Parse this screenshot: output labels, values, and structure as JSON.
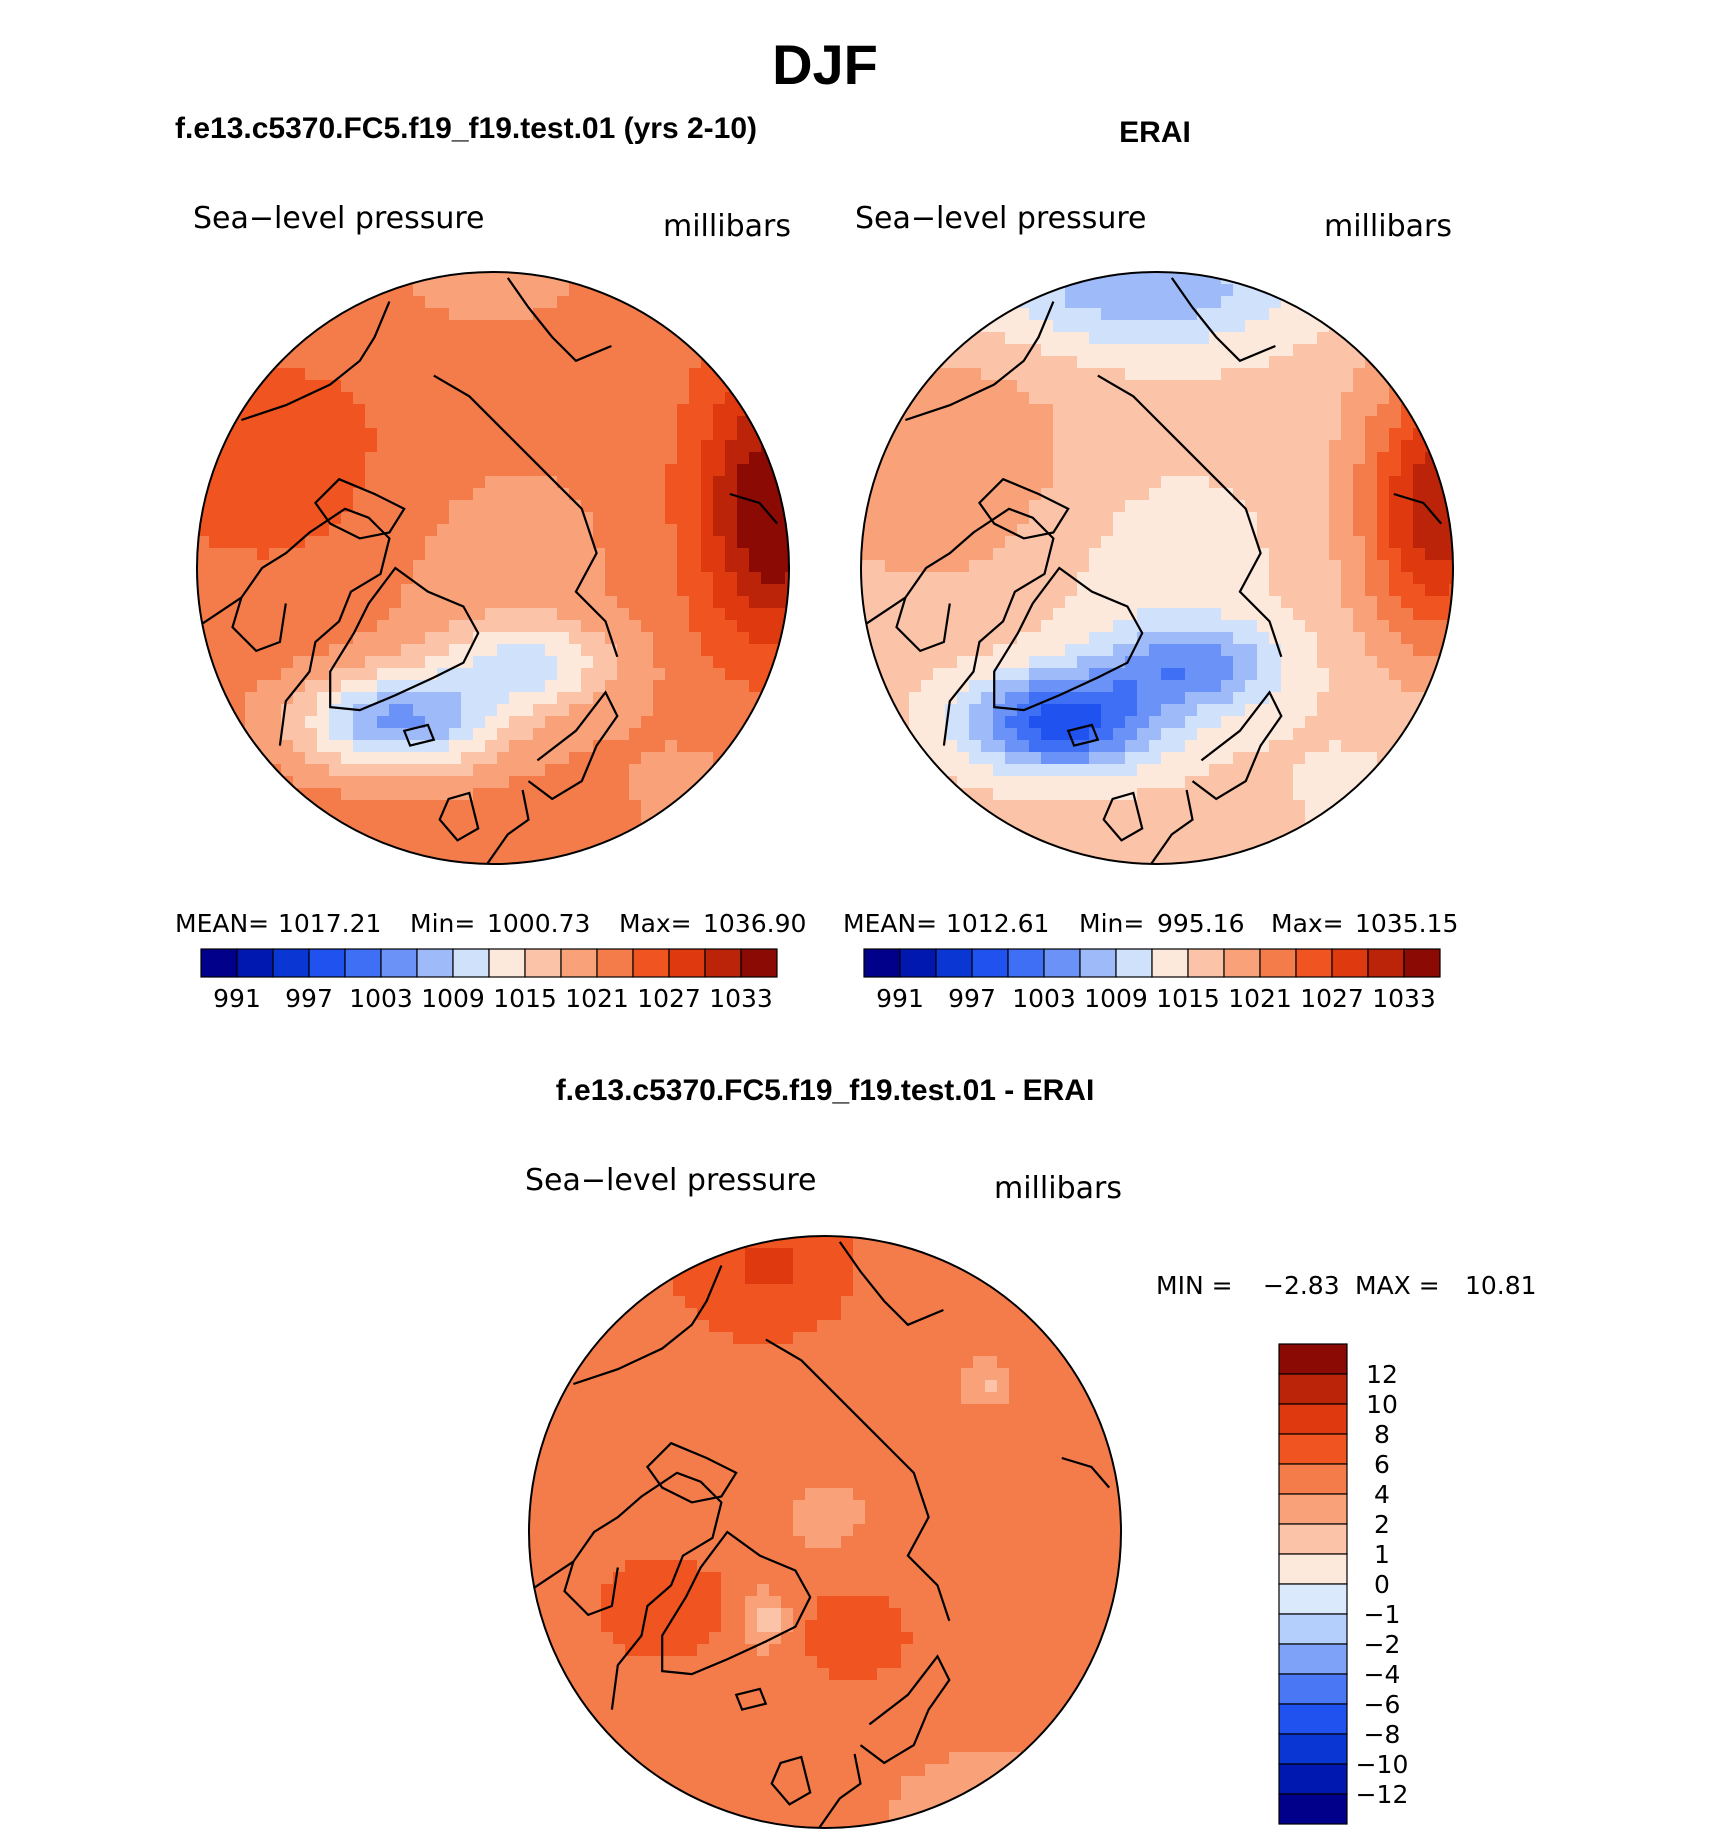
{
  "title": "DJF",
  "colors": {
    "abs_palette": [
      "#00008b",
      "#0018b0",
      "#0a37d4",
      "#1f52ee",
      "#3f6ff5",
      "#6b93f7",
      "#9fbaf9",
      "#cfe1fb",
      "#fde8dc",
      "#fbc4a8",
      "#f9a27a",
      "#f47c4b",
      "#f05521",
      "#df3a0f",
      "#bc2409",
      "#8b0a04"
    ],
    "diff_palette": [
      "#00008b",
      "#0018b0",
      "#0a37d4",
      "#1f52ee",
      "#4a78f5",
      "#7ea2f8",
      "#b4cffb",
      "#dbe9fc",
      "#fde8dc",
      "#fbc4a8",
      "#f9a27a",
      "#f47c4b",
      "#f05521",
      "#df3a0f",
      "#bc2409",
      "#8b0a04"
    ],
    "coast": "#000000"
  },
  "chart_data": [
    {
      "type": "heatmap",
      "subtitle": "f.e13.c5370.FC5.f19_f19.test.01 (yrs 2-10)",
      "variable_label": "Sea−level pressure",
      "units_label": "millibars",
      "stats": {
        "mean_label": "MEAN=",
        "mean": "1017.21",
        "min_label": "Min=",
        "min": "1000.73",
        "max_label": "Max=",
        "max": "1036.90"
      },
      "colorbar_ticks": [
        "991",
        "997",
        "1003",
        "1009",
        "1015",
        "1021",
        "1027",
        "1033"
      ],
      "levels": [
        991,
        994,
        997,
        1000,
        1003,
        1006,
        1009,
        1012,
        1015,
        1018,
        1021,
        1024,
        1027,
        1030,
        1033
      ],
      "field": {
        "base": 1022.5,
        "atlantic_low": -22,
        "pacific_low": -2,
        "siberian_high": 14,
        "canada_high": 3
      }
    },
    {
      "type": "heatmap",
      "subtitle": "ERAI",
      "variable_label": "Sea−level pressure",
      "units_label": "millibars",
      "stats": {
        "mean_label": "MEAN=",
        "mean": "1012.61",
        "min_label": "Min=",
        "min": "995.16",
        "max_label": "Max=",
        "max": "1035.15"
      },
      "colorbar_ticks": [
        "991",
        "997",
        "1003",
        "1009",
        "1015",
        "1021",
        "1027",
        "1033"
      ],
      "levels": [
        991,
        994,
        997,
        1000,
        1003,
        1006,
        1009,
        1012,
        1015,
        1018,
        1021,
        1024,
        1027,
        1030,
        1033
      ],
      "field": {
        "base": 1016.5,
        "atlantic_low": -24,
        "pacific_low": -10,
        "siberian_high": 16,
        "canada_high": 4
      }
    },
    {
      "type": "heatmap",
      "subtitle": "f.e13.c5370.FC5.f19_f19.test.01 - ERAI",
      "variable_label": "Sea−level pressure",
      "units_label": "millibars",
      "stats": {
        "min_label": "MIN =",
        "min": "−2.83",
        "max_label": "MAX =",
        "max": "10.81"
      },
      "colorbar_ticks": [
        "12",
        "10",
        "8",
        "6",
        "4",
        "2",
        "1",
        "0",
        "−1",
        "−2",
        "−4",
        "−6",
        "−8",
        "−10",
        "−12"
      ],
      "levels": [
        -12,
        -10,
        -8,
        -6,
        -4,
        -2,
        -1,
        0,
        1,
        2,
        4,
        6,
        8,
        10,
        12
      ],
      "field": {
        "base": 4.8,
        "pacific_high": 3.5,
        "atlantic_high": 2.5,
        "greenland_min": -4.5,
        "europe_low": -2.5
      }
    }
  ]
}
